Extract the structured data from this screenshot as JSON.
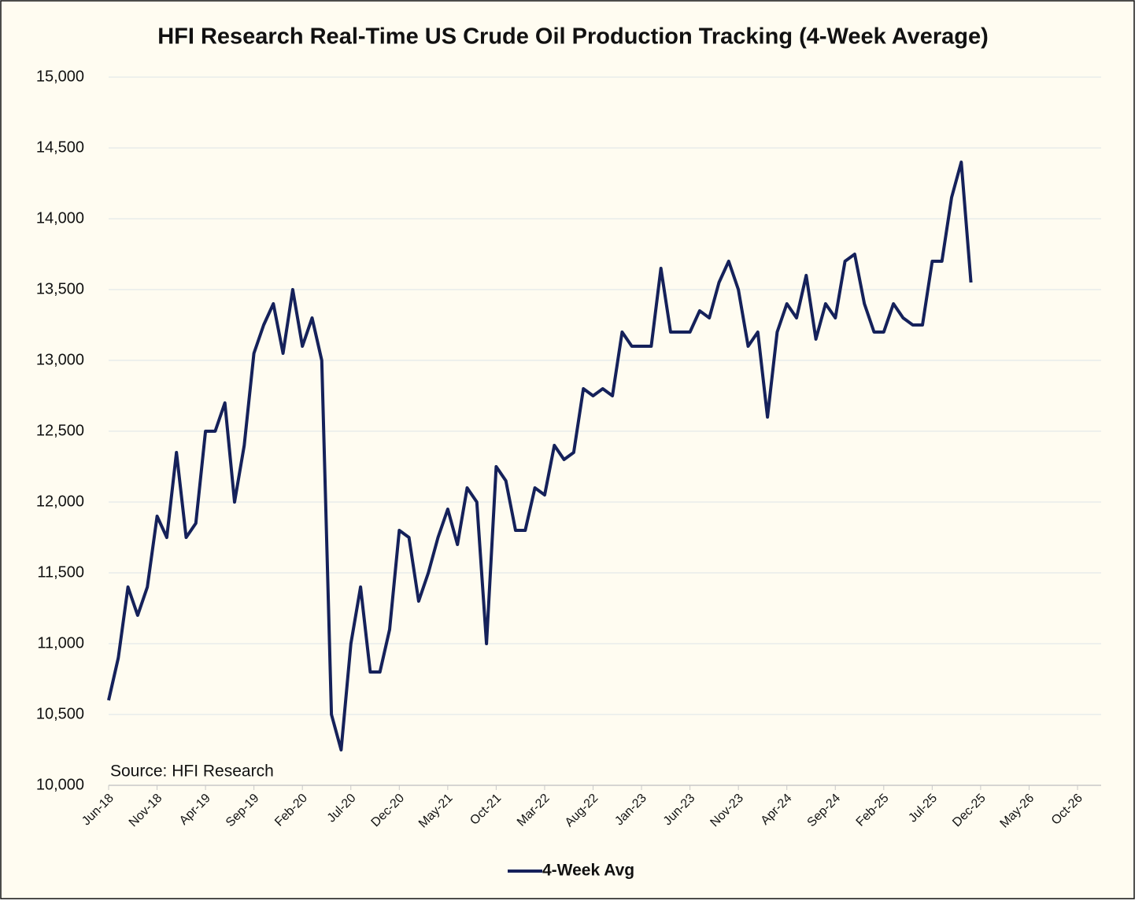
{
  "chart_data": {
    "type": "line",
    "title": "HFI Research Real-Time US Crude Oil Production Tracking (4-Week Average)",
    "annotation": "Source: HFI Research",
    "categories": [
      "Jun-18",
      null,
      null,
      null,
      null,
      "Nov-18",
      null,
      null,
      null,
      null,
      "Apr-19",
      null,
      null,
      null,
      null,
      "Sep-19",
      null,
      null,
      null,
      null,
      "Feb-20",
      null,
      null,
      null,
      null,
      "Jul-20",
      null,
      null,
      null,
      null,
      "Dec-20",
      null,
      null,
      null,
      null,
      "May-21",
      null,
      null,
      null,
      null,
      "Oct-21",
      null,
      null,
      null,
      null,
      "Mar-22",
      null,
      null,
      null,
      null,
      "Aug-22",
      null,
      null,
      null,
      null,
      "Jan-23",
      null,
      null,
      null,
      null,
      "Jun-23",
      null,
      null,
      null,
      null,
      "Nov-23",
      null,
      null,
      null,
      null,
      "Apr-24",
      null,
      null,
      null,
      null,
      "Sep-24",
      null,
      null,
      null,
      null,
      "Feb-25",
      null,
      null,
      null,
      null,
      "Jul-25",
      null,
      null,
      null,
      null,
      "Dec-25",
      null,
      null,
      null,
      null,
      "May-26",
      null,
      null,
      null,
      null,
      "Oct-26"
    ],
    "series": [
      {
        "name": "4-Week Avg",
        "color": "#15215a",
        "values": [
          10600,
          10900,
          11400,
          11200,
          11400,
          11900,
          11750,
          12350,
          11750,
          11850,
          12500,
          12500,
          12700,
          12000,
          12400,
          13050,
          13250,
          13400,
          13050,
          13500,
          13100,
          13300,
          13000,
          10500,
          10250,
          11000,
          11400,
          10800,
          10800,
          11100,
          11800,
          11750,
          11300,
          11500,
          11750,
          11950,
          11700,
          12100,
          12000,
          11000,
          12250,
          12150,
          11800,
          11800,
          12100,
          12050,
          12400,
          12300,
          12350,
          12800,
          12750,
          12800,
          12750,
          13200,
          13100,
          13100,
          13100,
          13650,
          13200,
          13200,
          13200,
          13350,
          13300,
          13550,
          13700,
          13500,
          13100,
          13200,
          12600,
          13200,
          13400,
          13300,
          13600,
          13150,
          13400,
          13300,
          13700,
          13750,
          13400,
          13200,
          13200,
          13400,
          13300,
          13250,
          13250,
          13700,
          13700,
          14150,
          14400,
          13550,
          null,
          null,
          null,
          null,
          null,
          null,
          null,
          null,
          null,
          null,
          null
        ]
      }
    ],
    "ylim": [
      10000,
      15000
    ],
    "yticks": [
      {
        "value": 10000,
        "label": "10,000"
      },
      {
        "value": 10500,
        "label": "10,500"
      },
      {
        "value": 11000,
        "label": "11,000"
      },
      {
        "value": 11500,
        "label": "11,500"
      },
      {
        "value": 12000,
        "label": "12,000"
      },
      {
        "value": 12500,
        "label": "12,500"
      },
      {
        "value": 13000,
        "label": "13,000"
      },
      {
        "value": 13500,
        "label": "13,500"
      },
      {
        "value": 14000,
        "label": "14,000"
      },
      {
        "value": 14500,
        "label": "14,500"
      },
      {
        "value": 15000,
        "label": "15,000"
      }
    ],
    "grid": true,
    "legend": "bottom"
  }
}
